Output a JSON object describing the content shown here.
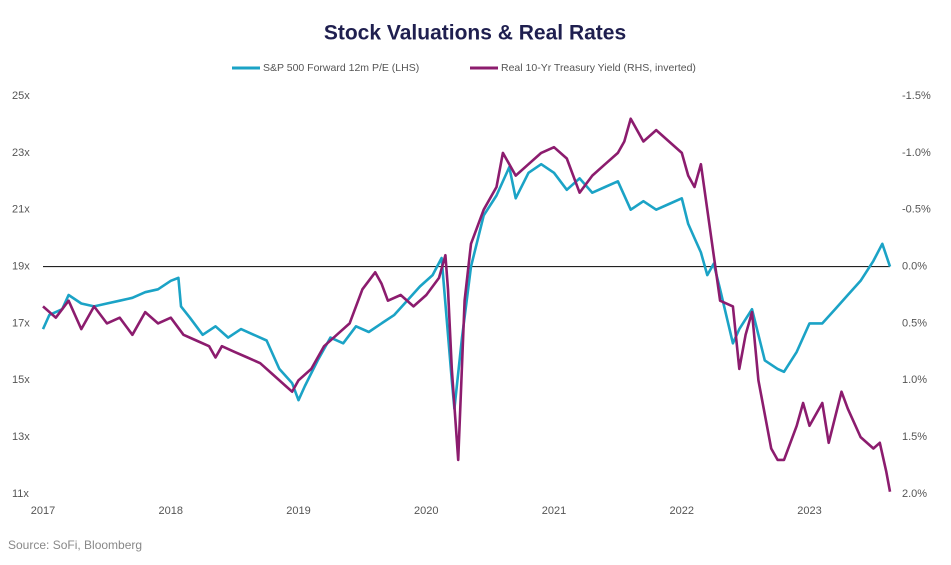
{
  "chart_data": {
    "type": "line",
    "title": "Stock Valuations & Real Rates",
    "source": "Source: SoFi, Bloomberg",
    "xlim": [
      2017,
      2023.63
    ],
    "xticks": [
      2017,
      2018,
      2019,
      2020,
      2021,
      2022,
      2023
    ],
    "ylim": [
      11,
      25
    ],
    "yticks": [
      {
        "value": 11,
        "label": "11x"
      },
      {
        "value": 13,
        "label": "13x"
      },
      {
        "value": 15,
        "label": "15x"
      },
      {
        "value": 17,
        "label": "17x"
      },
      {
        "value": 19,
        "label": "19x"
      },
      {
        "value": 21,
        "label": "21x"
      },
      {
        "value": 23,
        "label": "23x"
      },
      {
        "value": 25,
        "label": "25x"
      }
    ],
    "y2lim": [
      2.0,
      -1.5
    ],
    "y2ticks": [
      {
        "value": 2.0,
        "label": "2.0%"
      },
      {
        "value": 1.5,
        "label": "1.5%"
      },
      {
        "value": 1.0,
        "label": "1.0%"
      },
      {
        "value": 0.5,
        "label": "0.5%"
      },
      {
        "value": 0.0,
        "label": "0.0%"
      },
      {
        "value": -0.5,
        "label": "-0.5%"
      },
      {
        "value": -1.0,
        "label": "-1.0%"
      },
      {
        "value": -1.5,
        "label": "-1.5%"
      }
    ],
    "hline": 19,
    "legend": "top",
    "series": [
      {
        "name": "S&P 500 Forward 12m P/E (LHS)",
        "color": "#1ba3c6",
        "x": [
          2017.0,
          2017.05,
          2017.15,
          2017.2,
          2017.3,
          2017.4,
          2017.5,
          2017.6,
          2017.7,
          2017.8,
          2017.9,
          2018.0,
          2018.06,
          2018.08,
          2018.15,
          2018.25,
          2018.35,
          2018.45,
          2018.55,
          2018.65,
          2018.75,
          2018.85,
          2018.95,
          2019.0,
          2019.05,
          2019.15,
          2019.25,
          2019.35,
          2019.45,
          2019.55,
          2019.65,
          2019.75,
          2019.85,
          2019.95,
          2020.05,
          2020.12,
          2020.2,
          2020.22,
          2020.28,
          2020.35,
          2020.45,
          2020.55,
          2020.65,
          2020.7,
          2020.8,
          2020.9,
          2021.0,
          2021.1,
          2021.2,
          2021.3,
          2021.4,
          2021.5,
          2021.6,
          2021.7,
          2021.8,
          2021.9,
          2022.0,
          2022.05,
          2022.1,
          2022.15,
          2022.2,
          2022.25,
          2022.3,
          2022.4,
          2022.45,
          2022.55,
          2022.65,
          2022.75,
          2022.8,
          2022.9,
          2023.0,
          2023.1,
          2023.2,
          2023.3,
          2023.4,
          2023.5,
          2023.57,
          2023.63
        ],
        "values": [
          16.8,
          17.3,
          17.5,
          18.0,
          17.7,
          17.6,
          17.7,
          17.8,
          17.9,
          18.1,
          18.2,
          18.5,
          18.6,
          17.6,
          17.2,
          16.6,
          16.9,
          16.5,
          16.8,
          16.6,
          16.4,
          15.4,
          14.9,
          14.3,
          14.8,
          15.7,
          16.5,
          16.3,
          16.9,
          16.7,
          17.0,
          17.3,
          17.8,
          18.3,
          18.7,
          19.3,
          15.0,
          14.0,
          16.5,
          19.0,
          20.8,
          21.5,
          22.5,
          21.4,
          22.3,
          22.6,
          22.3,
          21.7,
          22.1,
          21.6,
          21.8,
          22.0,
          21.0,
          21.3,
          21.0,
          21.2,
          21.4,
          20.5,
          20.0,
          19.5,
          18.7,
          19.1,
          18.2,
          16.3,
          16.8,
          17.5,
          15.7,
          15.4,
          15.3,
          16.0,
          17.0,
          17.0,
          17.5,
          18.0,
          18.5,
          19.2,
          19.8,
          19.0
        ]
      },
      {
        "name": "Real 10-Yr Treasury Yield (RHS, inverted)",
        "color": "#8c1c6e",
        "axis": "y2",
        "x": [
          2017.0,
          2017.1,
          2017.2,
          2017.3,
          2017.4,
          2017.5,
          2017.6,
          2017.7,
          2017.8,
          2017.9,
          2018.0,
          2018.1,
          2018.2,
          2018.3,
          2018.35,
          2018.4,
          2018.5,
          2018.6,
          2018.7,
          2018.8,
          2018.9,
          2018.95,
          2019.0,
          2019.1,
          2019.2,
          2019.3,
          2019.4,
          2019.5,
          2019.6,
          2019.65,
          2019.7,
          2019.8,
          2019.9,
          2020.0,
          2020.1,
          2020.15,
          2020.17,
          2020.2,
          2020.25,
          2020.3,
          2020.35,
          2020.45,
          2020.55,
          2020.6,
          2020.7,
          2020.8,
          2020.9,
          2021.0,
          2021.1,
          2021.2,
          2021.3,
          2021.4,
          2021.5,
          2021.55,
          2021.6,
          2021.7,
          2021.8,
          2021.9,
          2022.0,
          2022.05,
          2022.1,
          2022.15,
          2022.2,
          2022.25,
          2022.3,
          2022.4,
          2022.45,
          2022.5,
          2022.55,
          2022.6,
          2022.7,
          2022.75,
          2022.8,
          2022.9,
          2022.95,
          2023.0,
          2023.1,
          2023.15,
          2023.25,
          2023.3,
          2023.4,
          2023.5,
          2023.55,
          2023.6,
          2023.63
        ],
        "values": [
          0.35,
          0.45,
          0.3,
          0.55,
          0.35,
          0.5,
          0.45,
          0.6,
          0.4,
          0.5,
          0.45,
          0.6,
          0.65,
          0.7,
          0.8,
          0.7,
          0.75,
          0.8,
          0.85,
          0.95,
          1.05,
          1.1,
          1.0,
          0.9,
          0.7,
          0.6,
          0.5,
          0.2,
          0.05,
          0.15,
          0.3,
          0.25,
          0.35,
          0.25,
          0.1,
          -0.1,
          0.2,
          0.9,
          1.7,
          0.3,
          -0.2,
          -0.5,
          -0.7,
          -1.0,
          -0.8,
          -0.9,
          -1.0,
          -1.05,
          -0.95,
          -0.65,
          -0.8,
          -0.9,
          -1.0,
          -1.1,
          -1.3,
          -1.1,
          -1.2,
          -1.1,
          -1.0,
          -0.8,
          -0.7,
          -0.9,
          -0.5,
          -0.1,
          0.3,
          0.35,
          0.9,
          0.6,
          0.4,
          1.0,
          1.6,
          1.7,
          1.7,
          1.4,
          1.2,
          1.4,
          1.2,
          1.55,
          1.1,
          1.25,
          1.5,
          1.6,
          1.55,
          1.8,
          1.98
        ]
      }
    ]
  }
}
